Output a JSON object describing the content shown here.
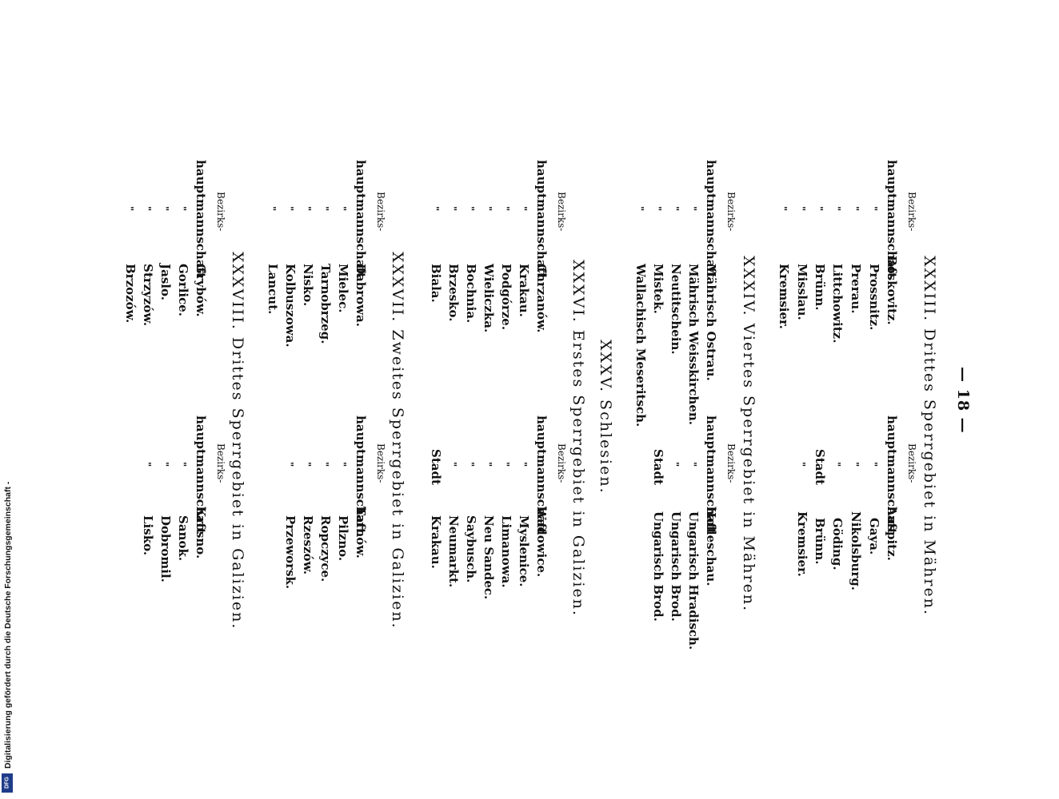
{
  "page_number": "— 18 —",
  "footer": "Digitalisierung gefördert durch die Deutsche Forschungsgemeinschaft -",
  "logo_text": "DFG",
  "labels": {
    "bezirks": "Bezirks-",
    "hauptmannschaft": "hauptmannschaft",
    "ditto": "\"",
    "stadt": "Stadt"
  },
  "sections": [
    {
      "heading": "XXXIII. Drittes Sperrgebiet in Mähren.",
      "left": [
        "Boskovitz.",
        "Prossnitz.",
        "Prerau.",
        "Littchowitz.",
        "Brünn.",
        "Misslau.",
        "Kremsier."
      ],
      "right": [
        "Auspitz.",
        "Gaya.",
        "Nikolsburg.",
        "Göding.",
        "Brünn.",
        "Kremsier."
      ]
    },
    {
      "heading": "XXXIV. Viertes Sperrgebiet in Mähren.",
      "left": [
        "Mährisch Ostrau.",
        "Mährisch Weisskirchen.",
        "Neutitschein.",
        "Mistek.",
        "Wallachisch Meseritsch."
      ],
      "right": [
        "Holleschau.",
        "Ungarisch Hradisch.",
        "Ungarisch Brod.",
        "Ungarisch Brod."
      ]
    },
    {
      "heading": "XXXV. Schlesien.",
      "left": [],
      "right": []
    },
    {
      "heading": "XXXVI. Erstes Sperrgebiet in Galizien.",
      "left": [
        "Chrzanów.",
        "Krakau.",
        "Podgórze.",
        "Wieliczka.",
        "Bochnia.",
        "Brzesko.",
        "Biala."
      ],
      "right": [
        "Wadowice.",
        "Myslenice.",
        "Limanowa.",
        "Neu Sandec.",
        "Saybusch.",
        "Neumarkt.",
        "Krakau."
      ]
    },
    {
      "heading": "XXXVII. Zweites Sperrgebiet in Galizien.",
      "left": [
        "Dabrowa.",
        "Mielec.",
        "Tarnobrzeg.",
        "Nisko.",
        "Kolbuszowa.",
        "Lancut."
      ],
      "right": [
        "Tarnów.",
        "Pilzno.",
        "Ropczyce.",
        "Rzeszów.",
        "Przeworsk."
      ]
    },
    {
      "heading": "XXXVIII. Drittes Sperrgebiet in Galizien.",
      "left": [
        "Grybów.",
        "Gorlice.",
        "Jaslo.",
        "Strzyzów.",
        "Brzozów."
      ],
      "right": [
        "Krosno.",
        "Sanok.",
        "Dobromil.",
        "Lisko."
      ]
    }
  ]
}
